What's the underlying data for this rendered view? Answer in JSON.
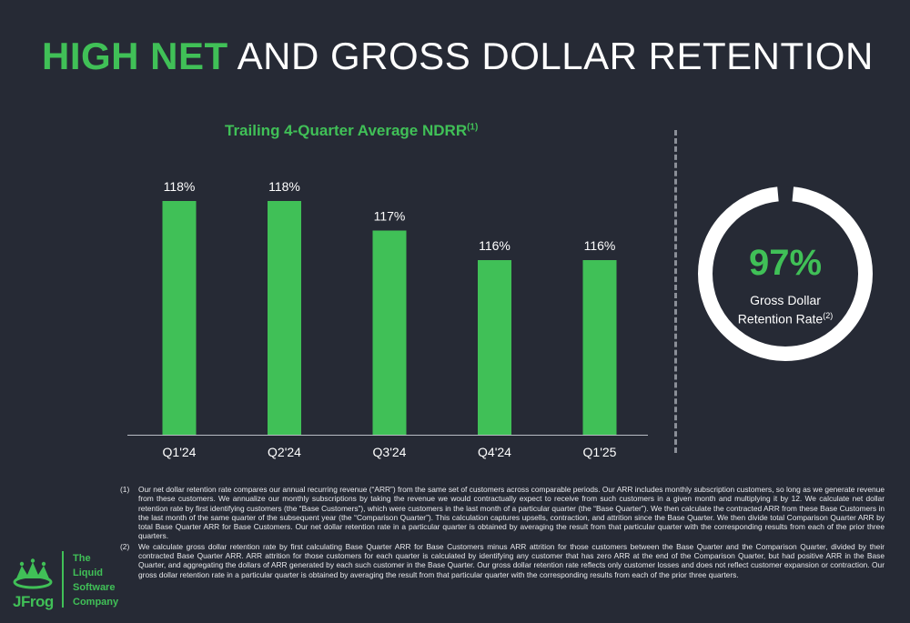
{
  "header": {
    "title_highlight": "HIGH NET",
    "title_rest": "AND GROSS DOLLAR RETENTION"
  },
  "colors": {
    "accent": "#40c057",
    "background": "#262a35"
  },
  "chart_data": {
    "type": "bar",
    "title": "Trailing 4-Quarter Average NDRR",
    "title_note": "(1)",
    "categories": [
      "Q1'24",
      "Q2'24",
      "Q3'24",
      "Q4'24",
      "Q1'25"
    ],
    "values": [
      118,
      118,
      117,
      116,
      116
    ],
    "value_labels": [
      "118%",
      "118%",
      "117%",
      "116%",
      "116%"
    ],
    "bar_color": "#40c057",
    "grid": false,
    "legend": "none"
  },
  "gross_retention": {
    "value_label": "97%",
    "value_fraction": 0.97,
    "label_line1": "Gross Dollar",
    "label_line2": "Retention Rate",
    "note": "(2)"
  },
  "footnotes": [
    {
      "num": "(1)",
      "text": "Our net dollar retention rate compares our annual recurring revenue (“ARR”) from the same set of customers across comparable periods. Our ARR includes monthly subscription customers, so long as we generate revenue from these customers. We annualize our monthly subscriptions by taking the revenue we would contractually expect to receive from such customers in a given month and multiplying it by 12. We calculate net dollar retention rate by first identifying customers (the “Base Customers”), which were customers in the last month of a particular quarter (the “Base Quarter”). We then calculate the contracted ARR from these Base Customers in the last month of the same quarter of the subsequent year (the “Comparison Quarter”). This calculation captures upsells, contraction, and attrition since the Base Quarter. We then divide total Comparison Quarter ARR by total Base Quarter ARR for Base Customers. Our net dollar retention rate in a particular quarter is obtained by averaging the result from that particular quarter with the corresponding results from each of the prior three quarters."
    },
    {
      "num": "(2)",
      "text": "We calculate gross dollar retention rate by first calculating Base Quarter ARR for Base Customers minus ARR attrition for those customers between the Base Quarter and the Comparison Quarter, divided by their contracted Base Quarter ARR. ARR attrition for those customers for each quarter is calculated by identifying any customer that has zero ARR at the end of the Comparison Quarter, but had positive ARR in the Base Quarter, and aggregating the dollars of ARR generated by each such customer in the Base Quarter. Our gross dollar retention rate reflects only customer losses and does not reflect customer expansion or contraction. Our gross dollar retention rate in a particular quarter is obtained by averaging the result from that particular quarter with the corresponding results from each of the prior three quarters."
    }
  ],
  "logo": {
    "wordmark": "JFrog",
    "tagline": [
      "The",
      "Liquid",
      "Software",
      "Company"
    ]
  }
}
